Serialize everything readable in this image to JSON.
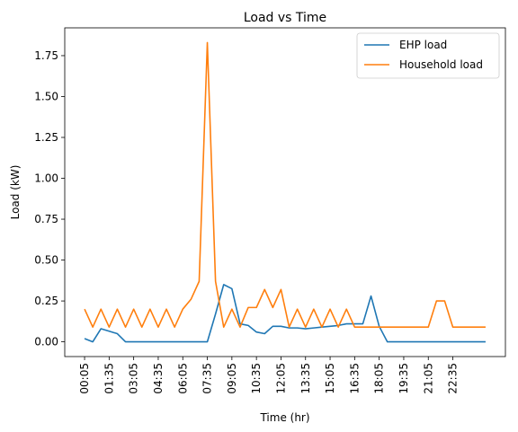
{
  "chart_data": {
    "type": "line",
    "title": "Load vs Time",
    "xlabel": "Time (hr)",
    "ylabel": "Load (kW)",
    "ylim": [
      -0.09,
      1.92
    ],
    "yticks": [
      0.0,
      0.25,
      0.5,
      0.75,
      1.0,
      1.25,
      1.5,
      1.75
    ],
    "ytick_labels": [
      "0.00",
      "0.25",
      "0.50",
      "0.75",
      "1.00",
      "1.25",
      "1.50",
      "1.75"
    ],
    "x": [
      "00:05",
      "00:35",
      "01:05",
      "01:35",
      "02:05",
      "02:35",
      "03:05",
      "03:35",
      "04:05",
      "04:35",
      "05:05",
      "05:35",
      "06:05",
      "06:35",
      "07:05",
      "07:35",
      "08:05",
      "08:35",
      "09:05",
      "09:35",
      "10:05",
      "10:35",
      "11:05",
      "11:35",
      "12:05",
      "12:35",
      "13:05",
      "13:35",
      "14:05",
      "14:35",
      "15:05",
      "15:35",
      "16:05",
      "16:35",
      "17:05",
      "17:35",
      "18:05",
      "18:35",
      "19:05",
      "19:35",
      "20:05",
      "20:35",
      "21:05",
      "21:35",
      "22:05",
      "22:35",
      "23:05",
      "23:35",
      "00:05",
      "00:35"
    ],
    "xtick_labels": [
      "00:05",
      "01:35",
      "03:05",
      "04:35",
      "06:05",
      "07:35",
      "09:05",
      "10:35",
      "12:05",
      "13:35",
      "15:05",
      "16:35",
      "18:05",
      "19:35",
      "21:05",
      "22:35"
    ],
    "xtick_step": 3,
    "grid": false,
    "legend_position": "top-right",
    "series": [
      {
        "name": "EHP load",
        "color": "#1f77b4",
        "values": [
          0.02,
          0.0,
          0.08,
          0.065,
          0.05,
          0.0,
          0.0,
          0.0,
          0.0,
          0.0,
          0.0,
          0.0,
          0.0,
          0.0,
          0.0,
          0.0,
          0.17,
          0.35,
          0.325,
          0.11,
          0.1,
          0.06,
          0.05,
          0.095,
          0.095,
          0.085,
          0.085,
          0.08,
          0.085,
          0.09,
          0.095,
          0.1,
          0.11,
          0.11,
          0.11,
          0.28,
          0.095,
          0.0,
          0.0,
          0.0,
          0.0,
          0.0,
          0.0,
          0.0,
          0.0,
          0.0,
          0.0,
          0.0,
          0.0,
          0.0
        ]
      },
      {
        "name": "Household load",
        "color": "#ff7f0e",
        "values": [
          0.2,
          0.09,
          0.2,
          0.09,
          0.2,
          0.09,
          0.2,
          0.09,
          0.2,
          0.09,
          0.2,
          0.09,
          0.2,
          0.26,
          0.37,
          1.83,
          0.37,
          0.09,
          0.2,
          0.09,
          0.21,
          0.21,
          0.32,
          0.21,
          0.32,
          0.09,
          0.2,
          0.09,
          0.2,
          0.09,
          0.2,
          0.09,
          0.2,
          0.09,
          0.09,
          0.09,
          0.09,
          0.09,
          0.09,
          0.09,
          0.09,
          0.09,
          0.09,
          0.25,
          0.25,
          0.09,
          0.09,
          0.09,
          0.09,
          0.09
        ]
      }
    ]
  }
}
